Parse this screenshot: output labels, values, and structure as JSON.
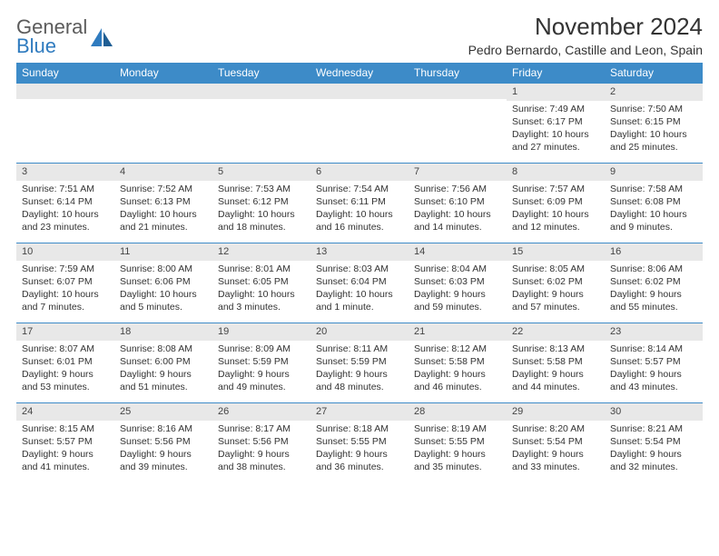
{
  "logo": {
    "top": "General",
    "bottom": "Blue"
  },
  "title": "November 2024",
  "location": "Pedro Bernardo, Castille and Leon, Spain",
  "colors": {
    "header_bg": "#3d8bc8",
    "header_text": "#ffffff",
    "daynum_bg": "#e8e8e8",
    "border": "#3d8bc8",
    "body_text": "#333333",
    "logo_gray": "#5b5b5b",
    "logo_blue": "#2f7bbf"
  },
  "day_headers": [
    "Sunday",
    "Monday",
    "Tuesday",
    "Wednesday",
    "Thursday",
    "Friday",
    "Saturday"
  ],
  "weeks": [
    [
      null,
      null,
      null,
      null,
      null,
      {
        "n": "1",
        "sr": "7:49 AM",
        "ss": "6:17 PM",
        "dl": "10 hours and 27 minutes."
      },
      {
        "n": "2",
        "sr": "7:50 AM",
        "ss": "6:15 PM",
        "dl": "10 hours and 25 minutes."
      }
    ],
    [
      {
        "n": "3",
        "sr": "7:51 AM",
        "ss": "6:14 PM",
        "dl": "10 hours and 23 minutes."
      },
      {
        "n": "4",
        "sr": "7:52 AM",
        "ss": "6:13 PM",
        "dl": "10 hours and 21 minutes."
      },
      {
        "n": "5",
        "sr": "7:53 AM",
        "ss": "6:12 PM",
        "dl": "10 hours and 18 minutes."
      },
      {
        "n": "6",
        "sr": "7:54 AM",
        "ss": "6:11 PM",
        "dl": "10 hours and 16 minutes."
      },
      {
        "n": "7",
        "sr": "7:56 AM",
        "ss": "6:10 PM",
        "dl": "10 hours and 14 minutes."
      },
      {
        "n": "8",
        "sr": "7:57 AM",
        "ss": "6:09 PM",
        "dl": "10 hours and 12 minutes."
      },
      {
        "n": "9",
        "sr": "7:58 AM",
        "ss": "6:08 PM",
        "dl": "10 hours and 9 minutes."
      }
    ],
    [
      {
        "n": "10",
        "sr": "7:59 AM",
        "ss": "6:07 PM",
        "dl": "10 hours and 7 minutes."
      },
      {
        "n": "11",
        "sr": "8:00 AM",
        "ss": "6:06 PM",
        "dl": "10 hours and 5 minutes."
      },
      {
        "n": "12",
        "sr": "8:01 AM",
        "ss": "6:05 PM",
        "dl": "10 hours and 3 minutes."
      },
      {
        "n": "13",
        "sr": "8:03 AM",
        "ss": "6:04 PM",
        "dl": "10 hours and 1 minute."
      },
      {
        "n": "14",
        "sr": "8:04 AM",
        "ss": "6:03 PM",
        "dl": "9 hours and 59 minutes."
      },
      {
        "n": "15",
        "sr": "8:05 AM",
        "ss": "6:02 PM",
        "dl": "9 hours and 57 minutes."
      },
      {
        "n": "16",
        "sr": "8:06 AM",
        "ss": "6:02 PM",
        "dl": "9 hours and 55 minutes."
      }
    ],
    [
      {
        "n": "17",
        "sr": "8:07 AM",
        "ss": "6:01 PM",
        "dl": "9 hours and 53 minutes."
      },
      {
        "n": "18",
        "sr": "8:08 AM",
        "ss": "6:00 PM",
        "dl": "9 hours and 51 minutes."
      },
      {
        "n": "19",
        "sr": "8:09 AM",
        "ss": "5:59 PM",
        "dl": "9 hours and 49 minutes."
      },
      {
        "n": "20",
        "sr": "8:11 AM",
        "ss": "5:59 PM",
        "dl": "9 hours and 48 minutes."
      },
      {
        "n": "21",
        "sr": "8:12 AM",
        "ss": "5:58 PM",
        "dl": "9 hours and 46 minutes."
      },
      {
        "n": "22",
        "sr": "8:13 AM",
        "ss": "5:58 PM",
        "dl": "9 hours and 44 minutes."
      },
      {
        "n": "23",
        "sr": "8:14 AM",
        "ss": "5:57 PM",
        "dl": "9 hours and 43 minutes."
      }
    ],
    [
      {
        "n": "24",
        "sr": "8:15 AM",
        "ss": "5:57 PM",
        "dl": "9 hours and 41 minutes."
      },
      {
        "n": "25",
        "sr": "8:16 AM",
        "ss": "5:56 PM",
        "dl": "9 hours and 39 minutes."
      },
      {
        "n": "26",
        "sr": "8:17 AM",
        "ss": "5:56 PM",
        "dl": "9 hours and 38 minutes."
      },
      {
        "n": "27",
        "sr": "8:18 AM",
        "ss": "5:55 PM",
        "dl": "9 hours and 36 minutes."
      },
      {
        "n": "28",
        "sr": "8:19 AM",
        "ss": "5:55 PM",
        "dl": "9 hours and 35 minutes."
      },
      {
        "n": "29",
        "sr": "8:20 AM",
        "ss": "5:54 PM",
        "dl": "9 hours and 33 minutes."
      },
      {
        "n": "30",
        "sr": "8:21 AM",
        "ss": "5:54 PM",
        "dl": "9 hours and 32 minutes."
      }
    ]
  ],
  "labels": {
    "sunrise": "Sunrise:",
    "sunset": "Sunset:",
    "daylight": "Daylight:"
  }
}
